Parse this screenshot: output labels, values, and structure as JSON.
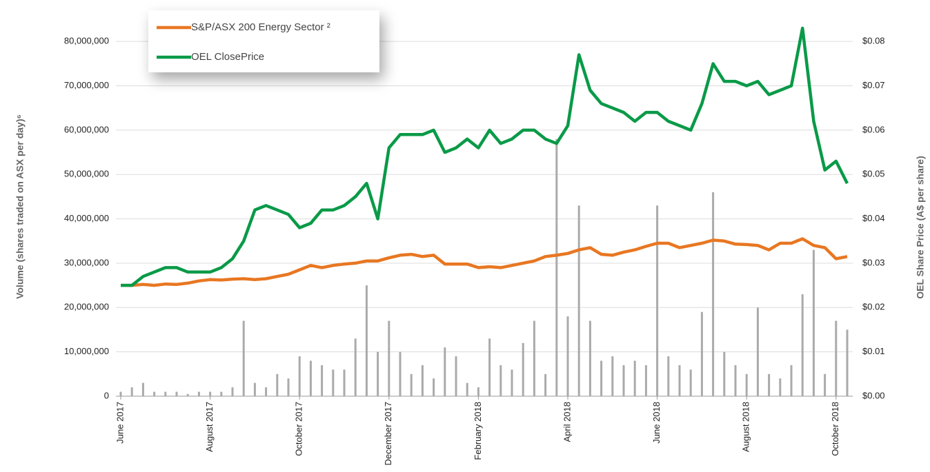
{
  "chart_data": {
    "type": "combo",
    "y_label": "Volume (shares traded on ASX per day)⁶",
    "y2_label": "OEL Share Price (A$ per share)",
    "categories": [
      "June 2017",
      null,
      null,
      null,
      null,
      null,
      null,
      null,
      "August 2017",
      null,
      null,
      null,
      null,
      null,
      null,
      null,
      "October 2017",
      null,
      null,
      null,
      null,
      null,
      null,
      null,
      "December 2017",
      null,
      null,
      null,
      null,
      null,
      null,
      null,
      "February 2018",
      null,
      null,
      null,
      null,
      null,
      null,
      null,
      "April 2018",
      null,
      null,
      null,
      null,
      null,
      null,
      null,
      "June 2018",
      null,
      null,
      null,
      null,
      null,
      null,
      null,
      "August 2018",
      null,
      null,
      null,
      null,
      null,
      null,
      null,
      "October 2018",
      null
    ],
    "ylim": [
      0,
      85000000
    ],
    "yticks": [
      0,
      {
        "value": 10000000,
        "label": "10,000,000"
      },
      {
        "value": 20000000,
        "label": "20,000,000"
      },
      {
        "value": 30000000,
        "label": "30,000,000"
      },
      {
        "value": 40000000,
        "label": "40,000,000"
      },
      {
        "value": 50000000,
        "label": "50,000,000"
      },
      {
        "value": 60000000,
        "label": "60,000,000"
      },
      {
        "value": 70000000,
        "label": "70,000,000"
      },
      {
        "value": 80000000,
        "label": "80,000,000"
      }
    ],
    "y2lim": [
      0,
      0.085
    ],
    "y2ticks": [
      {
        "value": 0,
        "label": "$0.00"
      },
      {
        "value": 0.01,
        "label": "$0.01"
      },
      {
        "value": 0.02,
        "label": "$0.02"
      },
      {
        "value": 0.03,
        "label": "$0.03"
      },
      {
        "value": 0.04,
        "label": "$0.04"
      },
      {
        "value": 0.05,
        "label": "$0.05"
      },
      {
        "value": 0.06,
        "label": "$0.06"
      },
      {
        "value": 0.07,
        "label": "$0.07"
      },
      {
        "value": 0.08,
        "label": "$0.08"
      }
    ],
    "grid": true,
    "legend": "top-left",
    "series": [
      {
        "type": "bar",
        "color": "#aaaaaa",
        "values": [
          1000000,
          2000000,
          3000000,
          1000000,
          1000000,
          1000000,
          500000,
          1000000,
          1000000,
          1000000,
          2000000,
          17000000,
          3000000,
          2000000,
          5000000,
          4000000,
          9000000,
          8000000,
          7000000,
          6000000,
          6000000,
          13000000,
          25000000,
          10000000,
          17000000,
          10000000,
          5000000,
          7000000,
          4000000,
          11000000,
          9000000,
          3000000,
          2000000,
          13000000,
          7000000,
          6000000,
          12000000,
          17000000,
          5000000,
          58000000,
          18000000,
          43000000,
          17000000,
          8000000,
          9000000,
          7000000,
          8000000,
          7000000,
          43000000,
          9000000,
          7000000,
          6000000,
          19000000,
          46000000,
          10000000,
          7000000,
          5000000,
          20000000,
          5000000,
          4000000,
          7000000,
          23000000,
          33000000,
          5000000,
          17000000,
          15000000
        ]
      },
      {
        "type": "line",
        "axis": "y2",
        "name": "S&P/ASX 200 Energy Sector ²",
        "color": "#e87722",
        "values": [
          0.025,
          0.025,
          0.0252,
          0.025,
          0.0253,
          0.0252,
          0.0255,
          0.026,
          0.0263,
          0.0262,
          0.0264,
          0.0265,
          0.0263,
          0.0265,
          0.027,
          0.0275,
          0.0285,
          0.0295,
          0.029,
          0.0295,
          0.0298,
          0.03,
          0.0305,
          0.0305,
          0.0312,
          0.0318,
          0.032,
          0.0315,
          0.0318,
          0.0298,
          0.0298,
          0.0298,
          0.029,
          0.0292,
          0.029,
          0.0295,
          0.03,
          0.0305,
          0.0315,
          0.0318,
          0.0322,
          0.033,
          0.0335,
          0.032,
          0.0318,
          0.0325,
          0.033,
          0.0338,
          0.0345,
          0.0345,
          0.0335,
          0.034,
          0.0345,
          0.0352,
          0.035,
          0.0343,
          0.0342,
          0.034,
          0.033,
          0.0345,
          0.0345,
          0.0355,
          0.034,
          0.0335,
          0.031,
          0.0315
        ]
      },
      {
        "type": "line",
        "axis": "y2",
        "name": "OEL ClosePrice",
        "color": "#0a9a48",
        "values": [
          0.025,
          0.025,
          0.027,
          0.028,
          0.029,
          0.029,
          0.028,
          0.028,
          0.028,
          0.029,
          0.031,
          0.035,
          0.042,
          0.043,
          0.042,
          0.041,
          0.038,
          0.039,
          0.042,
          0.042,
          0.043,
          0.045,
          0.048,
          0.04,
          0.056,
          0.059,
          0.059,
          0.059,
          0.06,
          0.055,
          0.056,
          0.058,
          0.056,
          0.06,
          0.057,
          0.058,
          0.06,
          0.06,
          0.058,
          0.057,
          0.061,
          0.077,
          0.069,
          0.066,
          0.065,
          0.064,
          0.062,
          0.064,
          0.064,
          0.062,
          0.061,
          0.06,
          0.066,
          0.075,
          0.071,
          0.071,
          0.07,
          0.071,
          0.068,
          0.069,
          0.07,
          0.083,
          0.062,
          0.051,
          0.053,
          0.048
        ]
      }
    ]
  }
}
